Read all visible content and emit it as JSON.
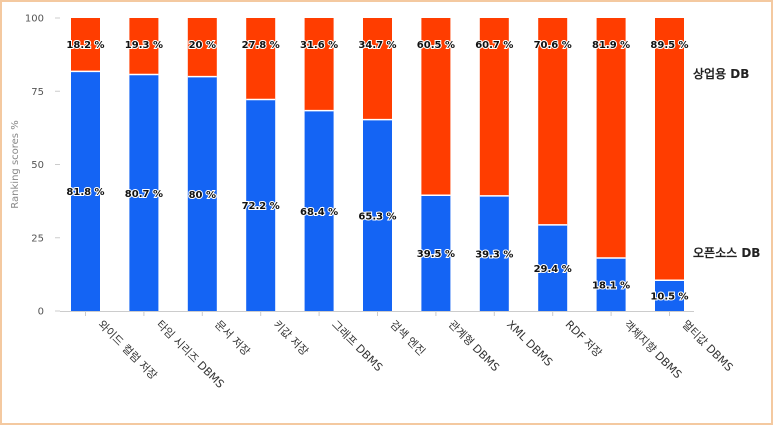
{
  "chart_data": {
    "type": "bar",
    "stacked": true,
    "categories": [
      "와이드 컬럼 저장",
      "타임 시리즈 DBMS",
      "문서 저장",
      "키값 저장",
      "그래프 DBMS",
      "검색 엔진",
      "관계형 DBMS",
      "XML DBMS",
      "RDF 저장",
      "객체지향 DBMS",
      "멀티값 DBMS"
    ],
    "series": [
      {
        "name": "오픈소스 DB",
        "color": "#1464f4",
        "values": [
          81.8,
          80.7,
          80,
          72.2,
          68.4,
          65.3,
          39.5,
          39.3,
          29.4,
          18.1,
          10.5
        ]
      },
      {
        "name": "상업용 DB",
        "color": "#ff3d00",
        "values": [
          18.2,
          19.3,
          20,
          27.8,
          31.6,
          34.7,
          60.5,
          60.7,
          70.6,
          81.9,
          89.5
        ]
      }
    ],
    "data_labels": {
      "open": [
        "81.8 %",
        "80.7 %",
        "80 %",
        "72.2 %",
        "68.4 %",
        "65.3 %",
        "39.5 %",
        "39.3 %",
        "29.4 %",
        "18.1 %",
        "10.5 %"
      ],
      "commercial": [
        "18.2 %",
        "19.3 %",
        "20 %",
        "27.8 %",
        "31.6 %",
        "34.7 %",
        "60.5 %",
        "60.7 %",
        "70.6 %",
        "81.9 %",
        "89.5 %"
      ]
    },
    "ylabel": "Ranking scores %",
    "ylim": [
      0,
      100
    ],
    "yticks": [
      0,
      25,
      50,
      75,
      100
    ],
    "ytick_labels": [
      "0",
      "25",
      "50",
      "75",
      "100"
    ],
    "grid": false,
    "legend_placement": "right"
  }
}
